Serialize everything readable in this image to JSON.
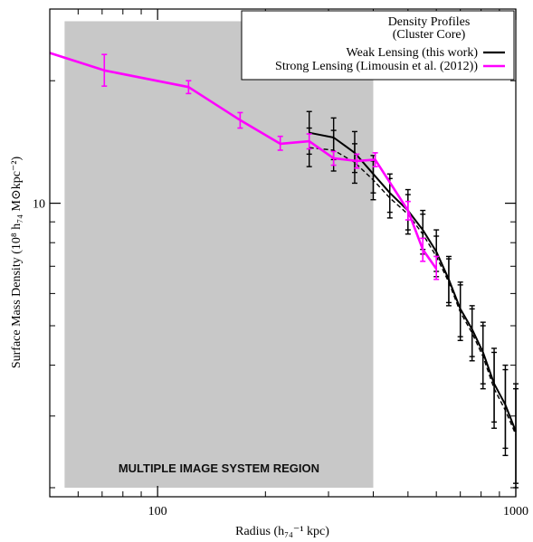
{
  "chart_data": {
    "type": "line",
    "title": "",
    "xlabel": "Radius (h₇₄⁻¹ kpc)",
    "ylabel": "Surface Mass Density (10⁸ h₇₄ M⊙kpc⁻²)",
    "x_scale": "log",
    "y_scale": "log",
    "xlim": [
      50,
      1000
    ],
    "ylim": [
      1.9,
      30
    ],
    "x_ticks": [
      {
        "value": 100,
        "label": "100"
      },
      {
        "value": 1000,
        "label": "1000"
      }
    ],
    "y_ticks": [
      {
        "value": 10,
        "label": "10"
      }
    ],
    "grid": false,
    "legend": {
      "position": "top-right",
      "title_line1": "Density Profiles",
      "title_line2": "(Cluster Core)",
      "entries": [
        "Weak Lensing (this work)",
        "Strong Lensing (Limousin et al. (2012))"
      ]
    },
    "shaded_region": {
      "x_range": [
        55,
        400
      ],
      "y_range": [
        2.0,
        28
      ],
      "label": "MULTIPLE IMAGE SYSTEM REGION",
      "color": "#c8c8c8"
    },
    "series": [
      {
        "name": "Weak Lensing (this work)",
        "color": "#000000",
        "style": "solid",
        "points": [
          {
            "x": 265,
            "y": 14.9,
            "lo": 13.2,
            "hi": 16.8
          },
          {
            "x": 310,
            "y": 14.5,
            "lo": 12.8,
            "hi": 16.2
          },
          {
            "x": 355,
            "y": 13.3,
            "lo": 11.9,
            "hi": 15.0
          },
          {
            "x": 400,
            "y": 11.8,
            "lo": 10.6,
            "hi": 13.1
          },
          {
            "x": 445,
            "y": 10.6,
            "lo": 9.5,
            "hi": 11.8
          },
          {
            "x": 500,
            "y": 9.6,
            "lo": 8.6,
            "hi": 10.8
          },
          {
            "x": 550,
            "y": 8.6,
            "lo": 7.7,
            "hi": 9.6
          },
          {
            "x": 600,
            "y": 7.6,
            "lo": 6.8,
            "hi": 8.6
          },
          {
            "x": 650,
            "y": 6.5,
            "lo": 5.7,
            "hi": 7.4
          },
          {
            "x": 700,
            "y": 5.5,
            "lo": 4.7,
            "hi": 6.4
          },
          {
            "x": 755,
            "y": 4.9,
            "lo": 4.2,
            "hi": 5.6
          },
          {
            "x": 810,
            "y": 4.3,
            "lo": 3.6,
            "hi": 5.1
          },
          {
            "x": 870,
            "y": 3.6,
            "lo": 2.9,
            "hi": 4.4
          },
          {
            "x": 935,
            "y": 3.2,
            "lo": 2.5,
            "hi": 4.0
          },
          {
            "x": 1000,
            "y": 2.75,
            "lo": 2.05,
            "hi": 3.6
          }
        ]
      },
      {
        "name": "Weak Lensing (dashed)",
        "color": "#000000",
        "style": "dashed",
        "points": [
          {
            "x": 265,
            "y": 13.7,
            "lo": 12.3,
            "hi": 15.3
          },
          {
            "x": 310,
            "y": 13.5,
            "lo": 12.0,
            "hi": 15.1
          },
          {
            "x": 355,
            "y": 12.6,
            "lo": 11.2,
            "hi": 14.0
          },
          {
            "x": 400,
            "y": 11.4,
            "lo": 10.2,
            "hi": 12.7
          },
          {
            "x": 445,
            "y": 10.3,
            "lo": 9.2,
            "hi": 11.5
          },
          {
            "x": 500,
            "y": 9.4,
            "lo": 8.4,
            "hi": 10.5
          },
          {
            "x": 550,
            "y": 8.4,
            "lo": 7.5,
            "hi": 9.4
          },
          {
            "x": 600,
            "y": 7.4,
            "lo": 6.6,
            "hi": 8.3
          },
          {
            "x": 650,
            "y": 6.4,
            "lo": 5.6,
            "hi": 7.3
          },
          {
            "x": 700,
            "y": 5.4,
            "lo": 4.6,
            "hi": 6.3
          },
          {
            "x": 755,
            "y": 4.8,
            "lo": 4.1,
            "hi": 5.5
          },
          {
            "x": 810,
            "y": 4.2,
            "lo": 3.5,
            "hi": 5.0
          },
          {
            "x": 870,
            "y": 3.5,
            "lo": 2.8,
            "hi": 4.3
          },
          {
            "x": 935,
            "y": 3.1,
            "lo": 2.4,
            "hi": 3.9
          },
          {
            "x": 1000,
            "y": 2.7,
            "lo": 2.0,
            "hi": 3.5
          }
        ]
      },
      {
        "name": "Strong Lensing (Limousin et al. (2012))",
        "color": "#ff00ff",
        "style": "solid",
        "points": [
          {
            "x": 50,
            "y": 23.4
          },
          {
            "x": 71,
            "y": 21.2,
            "lo": 19.4,
            "hi": 23.2
          },
          {
            "x": 122,
            "y": 19.3,
            "lo": 18.6,
            "hi": 20.0
          },
          {
            "x": 170,
            "y": 16.0,
            "lo": 15.3,
            "hi": 16.7
          },
          {
            "x": 220,
            "y": 14.0,
            "lo": 13.5,
            "hi": 14.6
          },
          {
            "x": 265,
            "y": 14.2,
            "lo": 13.6,
            "hi": 14.8
          },
          {
            "x": 310,
            "y": 12.9,
            "lo": 12.4,
            "hi": 13.4
          },
          {
            "x": 360,
            "y": 12.7,
            "lo": 12.2,
            "hi": 13.2
          },
          {
            "x": 405,
            "y": 12.8,
            "lo": 12.3,
            "hi": 13.3
          },
          {
            "x": 500,
            "y": 9.6,
            "lo": 9.1,
            "hi": 10.1
          },
          {
            "x": 550,
            "y": 7.7,
            "lo": 7.2,
            "hi": 8.2
          },
          {
            "x": 600,
            "y": 6.9,
            "lo": 6.5,
            "hi": 7.4
          }
        ]
      }
    ]
  }
}
